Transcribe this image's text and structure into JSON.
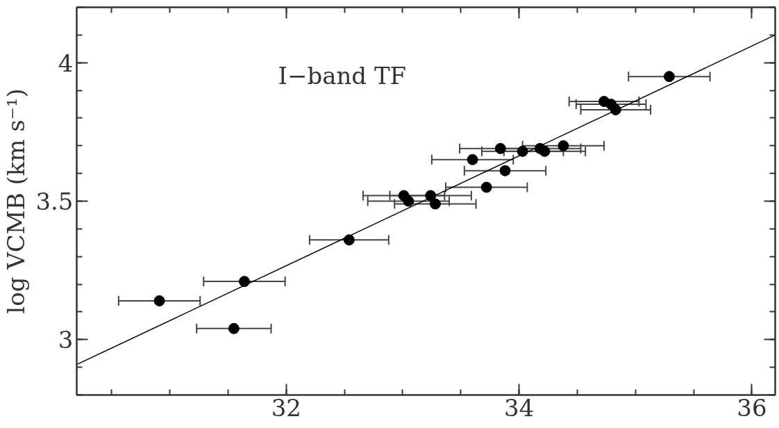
{
  "chart_data": {
    "type": "scatter",
    "ylabel": "log VCMB (km s⁻¹)",
    "annotations": [
      "I−band TF"
    ],
    "xlim": [
      30.2,
      36.2
    ],
    "ylim": [
      2.8,
      4.2
    ],
    "xticks": [
      32,
      34,
      36
    ],
    "yticks": [
      3,
      3.5,
      4
    ],
    "grid": false,
    "marker": "circle",
    "series": [
      {
        "color": "#000000",
        "x": [
          30.91,
          31.64,
          31.55,
          32.54,
          33.01,
          33.05,
          33.24,
          33.28,
          33.72,
          33.6,
          33.88,
          33.84,
          34.03,
          34.18,
          34.22,
          34.38,
          34.73,
          34.79,
          34.83,
          35.29
        ],
        "values": [
          3.14,
          3.21,
          3.04,
          3.36,
          3.52,
          3.5,
          3.52,
          3.49,
          3.55,
          3.65,
          3.61,
          3.69,
          3.68,
          3.69,
          3.68,
          3.7,
          3.86,
          3.85,
          3.83,
          3.95
        ],
        "xerrors": [
          0.35,
          0.35,
          0.32,
          0.34,
          0.35,
          0.35,
          0.35,
          0.35,
          0.35,
          0.35,
          0.35,
          0.35,
          0.35,
          0.35,
          0.35,
          0.35,
          0.3,
          0.3,
          0.3,
          0.35
        ]
      },
      {
        "type": "line",
        "marker": "none",
        "color": "#000000",
        "x": [
          30.2,
          36.2
        ],
        "values": [
          2.91,
          4.1
        ]
      }
    ]
  }
}
